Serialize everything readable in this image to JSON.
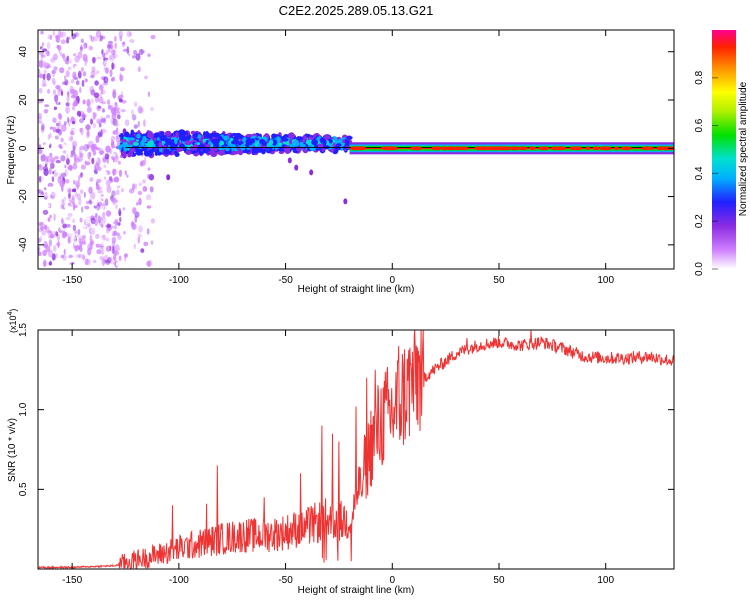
{
  "title": "C2E2.2025.289.05.13.G21",
  "chart_data": [
    {
      "type": "heatmap",
      "title": "C2E2.2025.289.05.13.G21",
      "xlabel": "Height of straight line (km)",
      "ylabel": "Frequency (Hz)",
      "xlim": [
        -166,
        132
      ],
      "ylim": [
        -50,
        49
      ],
      "xticks": [
        -150,
        -100,
        -50,
        0,
        50,
        100
      ],
      "yticks": [
        -40,
        -20,
        0,
        20,
        40
      ],
      "colorbar": {
        "label": "Normalized spectral amplitude",
        "range": [
          0,
          1
        ],
        "ticks": [
          "0.0",
          "0.2",
          "0.4",
          "0.6",
          "0.8"
        ],
        "tick_values": [
          0.0,
          0.2,
          0.4,
          0.6,
          0.8
        ]
      },
      "features": [
        {
          "name": "noise region",
          "x_range": [
            -166,
            -127
          ],
          "freq_spread": 48,
          "amplitude": 0.12
        },
        {
          "name": "broadening band",
          "x_range": [
            -127,
            -20
          ],
          "center_freq": 2,
          "freq_spread": 6,
          "amplitude": 0.3
        },
        {
          "name": "tone line",
          "x_range": [
            -20,
            132
          ],
          "center_freq": 0,
          "amplitude": 0.95
        }
      ]
    },
    {
      "type": "line",
      "xlabel": "Height of straight line (km)",
      "ylabel": "SNR (10 * v/v)",
      "scale_label": "(x10^4)",
      "scale_base": "(x10",
      "scale_exp": "4",
      "scale_close": ")",
      "xlim": [
        -166,
        132
      ],
      "ylim": [
        0,
        1.5
      ],
      "xticks": [
        -150,
        -100,
        -50,
        0,
        50,
        100
      ],
      "yticks": [
        0.5,
        1.0,
        1.5
      ],
      "ytick_labels": [
        "0.5",
        "1.0",
        "1.5"
      ],
      "line_color": "#ee3333",
      "series": [
        {
          "name": "SNR",
          "x": [
            -166,
            -150,
            -130,
            -120,
            -110,
            -100,
            -90,
            -80,
            -70,
            -60,
            -50,
            -45,
            -40,
            -35,
            -30,
            -25,
            -20,
            -15,
            -10,
            -5,
            0,
            5,
            10,
            20,
            30,
            40,
            50,
            60,
            70,
            80,
            90,
            100,
            110,
            120,
            132
          ],
          "y": [
            0.01,
            0.01,
            0.02,
            0.05,
            0.08,
            0.12,
            0.15,
            0.18,
            0.2,
            0.2,
            0.22,
            0.24,
            0.25,
            0.28,
            0.3,
            0.28,
            0.3,
            0.5,
            0.75,
            0.9,
            0.95,
            1.05,
            1.15,
            1.25,
            1.35,
            1.4,
            1.42,
            1.4,
            1.42,
            1.38,
            1.33,
            1.32,
            1.32,
            1.33,
            1.3
          ]
        }
      ],
      "peaks": [
        {
          "x": -103,
          "y": 0.4
        },
        {
          "x": -87,
          "y": 0.41
        },
        {
          "x": -82,
          "y": 0.65
        },
        {
          "x": -60,
          "y": 0.45
        },
        {
          "x": -43,
          "y": 0.6
        },
        {
          "x": -33,
          "y": 0.9
        },
        {
          "x": -31,
          "y": 1.0
        },
        {
          "x": -28,
          "y": 0.85
        },
        {
          "x": -25,
          "y": 0.8
        },
        {
          "x": -17,
          "y": 1.02
        },
        {
          "x": -12,
          "y": 1.2
        },
        {
          "x": -8,
          "y": 1.25
        },
        {
          "x": 3,
          "y": 1.4
        },
        {
          "x": 7,
          "y": 1.32
        },
        {
          "x": 14,
          "y": 1.28
        },
        {
          "x": 35,
          "y": 1.45
        },
        {
          "x": 65,
          "y": 1.5
        }
      ]
    }
  ]
}
